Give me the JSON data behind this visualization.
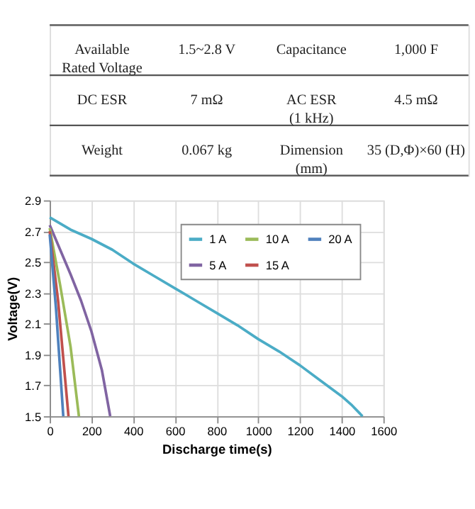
{
  "chart_data": [
    {
      "type": "other",
      "annotations": [
        "Available\nRated  Voltage",
        "1.5~2.8  V",
        "Capacitance",
        "1,000  F",
        "DC  ESR",
        "7  mΩ",
        "AC  ESR\n(1  kHz)",
        "4.5  mΩ",
        "Weight",
        "0.067  kg",
        "Dimension\n(mm)",
        "35  (D,Φ)×60  (H)"
      ]
    },
    {
      "type": "line",
      "xlabel": "Discharge time(s)",
      "ylabel": "Voltage(V)",
      "xlim": [
        0,
        1600
      ],
      "xticks": [
        0,
        200,
        400,
        600,
        800,
        1000,
        1200,
        1400,
        1600
      ],
      "ylim": [
        1.5,
        2.9
      ],
      "yticks": [
        1.5,
        1.7,
        1.9,
        2.1,
        2.3,
        2.5,
        2.7,
        2.9
      ],
      "grid": true,
      "legend": "top right",
      "marker": "none",
      "line_style": "solid",
      "series": [
        {
          "name": "1 A",
          "color": "#4bacc6",
          "x": [
            0,
            100,
            200,
            300,
            400,
            500,
            600,
            700,
            800,
            900,
            1000,
            1100,
            1200,
            1300,
            1400,
            1450,
            1500
          ],
          "values": [
            2.79,
            2.71,
            2.65,
            2.58,
            2.49,
            2.41,
            2.33,
            2.25,
            2.17,
            2.09,
            2.0,
            1.92,
            1.83,
            1.73,
            1.63,
            1.57,
            1.5
          ]
        },
        {
          "name": "5 A",
          "color": "#8064a2",
          "x": [
            0,
            50,
            100,
            150,
            200,
            250,
            290
          ],
          "values": [
            2.74,
            2.58,
            2.42,
            2.25,
            2.05,
            1.8,
            1.5
          ]
        },
        {
          "name": "10 A",
          "color": "#9bbb59",
          "x": [
            0,
            50,
            100,
            140
          ],
          "values": [
            2.72,
            2.35,
            1.95,
            1.5
          ]
        },
        {
          "name": "15 A",
          "color": "#c0504d",
          "x": [
            0,
            40,
            90
          ],
          "values": [
            2.7,
            2.25,
            1.5
          ]
        },
        {
          "name": "20 A",
          "color": "#4f81bd",
          "x": [
            0,
            30,
            65
          ],
          "values": [
            2.68,
            2.2,
            1.5
          ]
        }
      ]
    }
  ]
}
